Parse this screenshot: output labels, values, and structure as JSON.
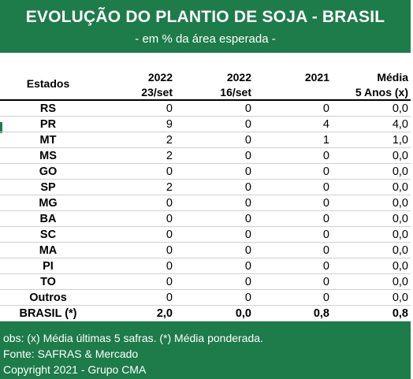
{
  "header": {
    "title": "EVOLUÇÃO DO PLANTIO DE SOJA - BRASIL",
    "subtitle": "- em % da área esperada -"
  },
  "columns": {
    "states": "Estados",
    "c1_line1": "2022",
    "c1_line2": "23/set",
    "c2_line1": "2022",
    "c2_line2": "16/set",
    "c3_line1": "2021",
    "c4_line1": "Média",
    "c4_line2": "5 Anos (x)"
  },
  "chart_data": {
    "type": "table",
    "title": "EVOLUÇÃO DO PLANTIO DE SOJA - BRASIL",
    "subtitle": "- em % da área esperada -",
    "headers": [
      "Estados",
      "2022 23/set",
      "2022 16/set",
      "2021",
      "Média 5 Anos (x)"
    ],
    "rows": [
      [
        "RS",
        "0",
        "0",
        "0",
        "0,0"
      ],
      [
        "PR",
        "9",
        "0",
        "4",
        "4,0"
      ],
      [
        "MT",
        "2",
        "0",
        "1",
        "1,0"
      ],
      [
        "MS",
        "2",
        "0",
        "0",
        "0,0"
      ],
      [
        "GO",
        "0",
        "0",
        "0",
        "0,0"
      ],
      [
        "SP",
        "2",
        "0",
        "0",
        "0,0"
      ],
      [
        "MG",
        "0",
        "0",
        "0",
        "0,0"
      ],
      [
        "BA",
        "0",
        "0",
        "0",
        "0,0"
      ],
      [
        "SC",
        "0",
        "0",
        "0",
        "0,0"
      ],
      [
        "MA",
        "0",
        "0",
        "0",
        "0,0"
      ],
      [
        "PI",
        "0",
        "0",
        "0",
        "0,0"
      ],
      [
        "TO",
        "0",
        "0",
        "0",
        "0,0"
      ],
      [
        "Outros",
        "0",
        "0",
        "0",
        "0,0"
      ]
    ],
    "total": [
      "BRASIL (*)",
      "2,0",
      "0,0",
      "0,8",
      "0,8"
    ]
  },
  "footer": {
    "obs": "obs: (x) Média últimas 5 safras. (*) Média ponderada.",
    "source": "Fonte: SAFRAS & Mercado",
    "copyright": "Copyright 2021 - Grupo CMA"
  },
  "colors": {
    "header_bg": "#1e7b4a",
    "footer_bg": "#1e7b4a",
    "text": "#000000"
  }
}
